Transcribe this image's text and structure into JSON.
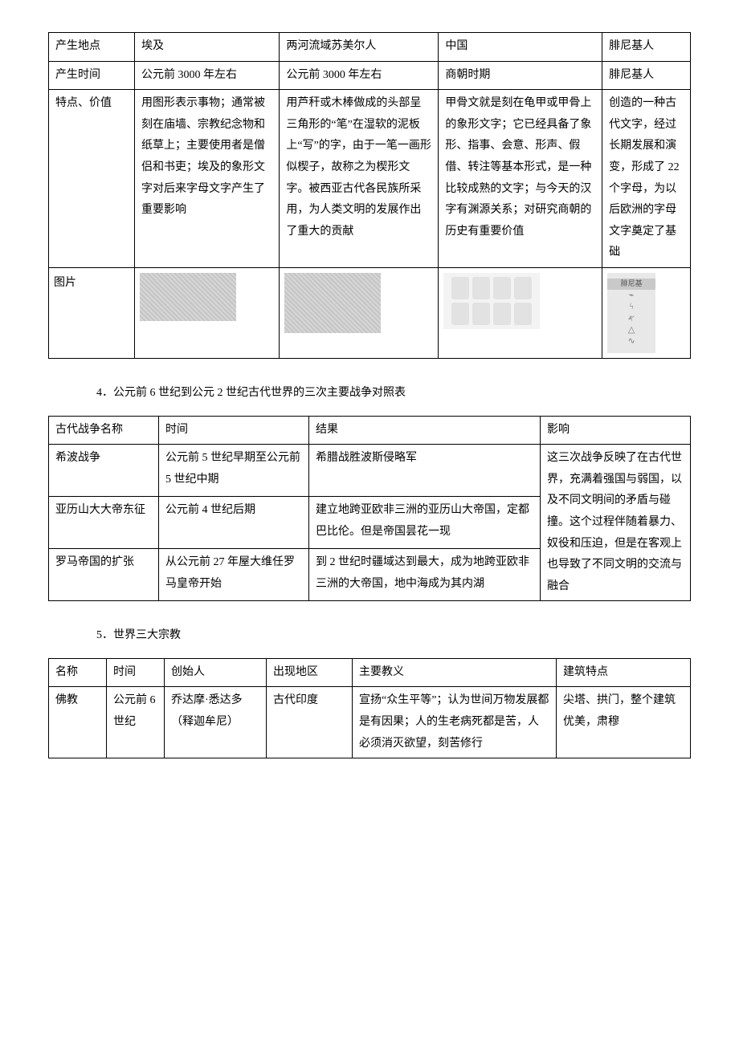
{
  "table1": {
    "rows": [
      {
        "label": "产生地点",
        "c1": "埃及",
        "c2": "两河流域苏美尔人",
        "c3": "中国",
        "c4": "腓尼基人"
      },
      {
        "label": "产生时间",
        "c1": "公元前 3000 年左右",
        "c2": "公元前 3000 年左右",
        "c3": "商朝时期",
        "c4": "腓尼基人"
      },
      {
        "label": "特点、价值",
        "c1": "用图形表示事物；通常被刻在庙墙、宗教纪念物和纸草上；主要使用者是僧侣和书吏；埃及的象形文字对后来字母文字产生了重要影响",
        "c2": "用芦秆或木棒做成的头部呈三角形的“笔”在湿软的泥板上“写”的字，由于一笔一画形似楔子，故称之为楔形文字。被西亚古代各民族所采用，为人类文明的发展作出了重大的贡献",
        "c3": "甲骨文就是刻在龟甲或甲骨上的象形文字；它已经具备了象形、指事、会意、形声、假借、转注等基本形式，是一种比较成熟的文字；与今天的汉字有渊源关系；对研究商朝的历史有重要价值",
        "c4": "创造的一种古代文字，经过长期发展和演变，形成了 22 个字母，为以后欧洲的字母文字奠定了基础"
      },
      {
        "label": "图片",
        "c1": "",
        "c2": "",
        "c3": "",
        "c4": ""
      }
    ]
  },
  "section4_title": "4．公元前 6 世纪到公元 2 世纪古代世界的三次主要战争对照表",
  "table2": {
    "header": {
      "c1": "古代战争名称",
      "c2": "时间",
      "c3": "结果",
      "c4": "影响"
    },
    "rows": [
      {
        "c1": "希波战争",
        "c2": "公元前 5 世纪早期至公元前 5 世纪中期",
        "c3": "希腊战胜波斯侵略军"
      },
      {
        "c1": "亚历山大大帝东征",
        "c2": "公元前 4 世纪后期",
        "c3": "建立地跨亚欧非三洲的亚历山大帝国，定都巴比伦。但是帝国昙花一现"
      },
      {
        "c1": "罗马帝国的扩张",
        "c2": "从公元前 27 年屋大维任罗马皇帝开始",
        "c3": "到 2 世纪时疆域达到最大，成为地跨亚欧非三洲的大帝国，地中海成为其内湖"
      }
    ],
    "impact": "这三次战争反映了在古代世界，充满着强国与弱国，以及不同文明间的矛盾与碰撞。这个过程伴随着暴力、奴役和压迫，但是在客观上也导致了不同文明的交流与融合"
  },
  "section5_title": "5．世界三大宗教",
  "table3": {
    "header": {
      "c1": "名称",
      "c2": "时间",
      "c3": "创始人",
      "c4": "出现地区",
      "c5": "主要教义",
      "c6": "建筑特点"
    },
    "rows": [
      {
        "c1": "佛教",
        "c2": "公元前 6 世纪",
        "c3": "乔达摩·悉达多（释迦牟尼）",
        "c4": "古代印度",
        "c5": "宣扬“众生平等”；认为世间万物发展都是有因果；人的生老病死都是苦，人必须消灭欲望，刻苦修行",
        "c6": "尖塔、拱门，整个建筑优美，肃穆"
      }
    ]
  }
}
